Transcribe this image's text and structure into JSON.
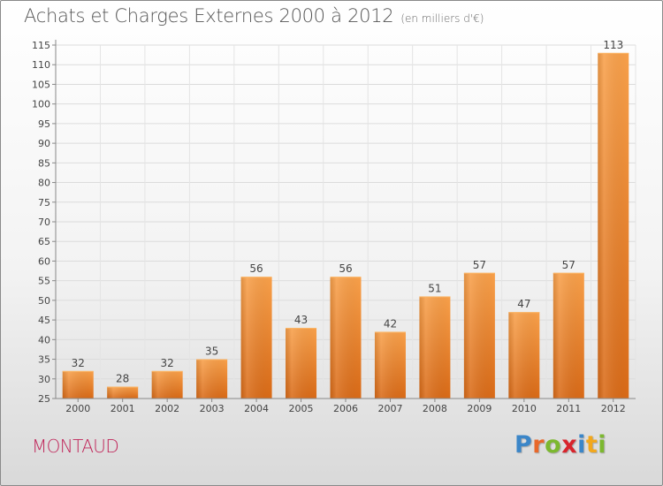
{
  "header": {
    "title": "Achats et Charges Externes 2000 à 2012",
    "subtitle": "(en milliers d'€)"
  },
  "footer": {
    "town": "MONTAUD",
    "brand_letters": [
      {
        "char": "P",
        "color": "#3b86c8"
      },
      {
        "char": "r",
        "color": "#e8682a"
      },
      {
        "char": "o",
        "color": "#7cb82f"
      },
      {
        "char": "x",
        "color": "#d8242c"
      },
      {
        "char": "i",
        "color": "#3b86c8"
      },
      {
        "char": "t",
        "color": "#f2a81d"
      },
      {
        "char": "i",
        "color": "#7cb82f"
      }
    ]
  },
  "chart_data": {
    "type": "bar",
    "title": "Achats et Charges Externes 2000 à 2012",
    "subtitle": "(en milliers d'€)",
    "categories": [
      "2000",
      "2001",
      "2002",
      "2003",
      "2004",
      "2005",
      "2006",
      "2007",
      "2008",
      "2009",
      "2010",
      "2011",
      "2012"
    ],
    "values": [
      32,
      28,
      32,
      35,
      56,
      43,
      56,
      42,
      51,
      57,
      47,
      57,
      113
    ],
    "ylim": [
      25,
      115
    ],
    "ytick_step": 5,
    "grid": true,
    "bar_color": "#f0892a"
  }
}
